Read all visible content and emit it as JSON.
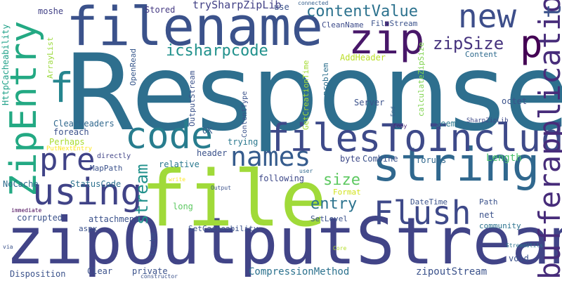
{
  "word_cloud": {
    "words": [
      {
        "text": "Response",
        "color": "#2e6f8e"
      },
      {
        "text": "zipOutputStream",
        "color": "#414487"
      },
      {
        "text": "file",
        "color": "#a0da39"
      },
      {
        "text": "filename",
        "color": "#3b528b"
      },
      {
        "text": "string",
        "color": "#30688e"
      },
      {
        "text": "filesToInclude",
        "color": "#3e4a89"
      },
      {
        "text": "ZipEntry",
        "color": "#23a983"
      },
      {
        "text": "using",
        "color": "#404387"
      },
      {
        "text": "code",
        "color": "#287d8e"
      },
      {
        "text": "new",
        "color": "#3d4e8a"
      },
      {
        "text": "zip",
        "color": "#481769"
      },
      {
        "text": "p",
        "color": "#440154"
      },
      {
        "text": "f",
        "color": "#25858e"
      },
      {
        "text": "pre",
        "color": "#404387"
      },
      {
        "text": "names",
        "color": "#365c8d"
      },
      {
        "text": "Flush",
        "color": "#3e4989"
      },
      {
        "text": "bufferapplication",
        "color": "#472c7a"
      },
      {
        "text": "contentValue",
        "color": "#2c728e"
      },
      {
        "text": "icsharpcode",
        "color": "#21918c"
      },
      {
        "text": "zipSize",
        "color": "#46337e"
      },
      {
        "text": "size",
        "color": "#5ec962"
      },
      {
        "text": "entry",
        "color": "#2c738e"
      },
      {
        "text": "stream",
        "color": "#21918c"
      },
      {
        "text": "tr",
        "color": "#3b528b"
      },
      {
        "text": "tryShar​pZipLib",
        "color": "#424186"
      },
      {
        "text": "moshe",
        "color": "#424186"
      },
      {
        "text": "Stored",
        "color": "#443983"
      },
      {
        "text": "use",
        "color": "#3b528b"
      },
      {
        "text": "connected",
        "color": "#355f8d"
      },
      {
        "text": "CleanName",
        "color": "#3e4c8a"
      },
      {
        "text": "FileStream",
        "color": "#3b528b"
      },
      {
        "text": "OpenRead",
        "color": "#38588c"
      },
      {
        "text": "Content",
        "color": "#2f6b8e"
      },
      {
        "text": "AddHeader",
        "color": "#bade28"
      },
      {
        "text": "ArrayList",
        "color": "#9bd93c"
      },
      {
        "text": "HttpCacheability",
        "color": "#1fa188"
      },
      {
        "text": "OutputStream",
        "color": "#3b528b"
      },
      {
        "text": "GetCreationTime",
        "color": "#a5db36"
      },
      {
        "text": "problem",
        "color": "#2d708e"
      },
      {
        "text": "calculateZipSize",
        "color": "#7fd34e"
      },
      {
        "text": "ClearHeaders",
        "color": "#31688e"
      },
      {
        "text": "foreach",
        "color": "#3b528b"
      },
      {
        "text": "Perhaps",
        "color": "#aadc32"
      },
      {
        "text": "PutNextEntry",
        "color": "#fde725"
      },
      {
        "text": "directly",
        "color": "#414487"
      },
      {
        "text": "MapPath",
        "color": "#3b528b"
      },
      {
        "text": "header",
        "color": "#3b528b"
      },
      {
        "text": "trying",
        "color": "#2a788e"
      },
      {
        "text": "OK",
        "color": "#355f8d"
      },
      {
        "text": "relative",
        "color": "#2a788e"
      },
      {
        "text": "ContentType",
        "color": "#3b528b"
      },
      {
        "text": "Server",
        "color": "#3b528b"
      },
      {
        "text": "seem",
        "color": "#2a788e"
      },
      {
        "text": "octet",
        "color": "#3b528b"
      },
      {
        "text": "End",
        "color": "#355f8d"
      },
      {
        "text": "Copy",
        "color": "#482173"
      },
      {
        "text": "SharpZipLib",
        "color": "#3e4a89"
      },
      {
        "text": "byte",
        "color": "#3e4a89"
      },
      {
        "text": "Combine",
        "color": "#3b528b"
      },
      {
        "text": "forums",
        "color": "#31688e"
      },
      {
        "text": "Length",
        "color": "#4ac16d"
      },
      {
        "text": "NoCache",
        "color": "#2f6c8e"
      },
      {
        "text": "StatusCode",
        "color": "#2d708e"
      },
      {
        "text": "write",
        "color": "#fde725"
      },
      {
        "text": "following",
        "color": "#3e4989"
      },
      {
        "text": "user",
        "color": "#31688e"
      },
      {
        "text": "Output",
        "color": "#3b528b"
      },
      {
        "text": "Format",
        "color": "#d2e21b"
      },
      {
        "text": "DateTime",
        "color": "#3b528b"
      },
      {
        "text": "Path",
        "color": "#3b528b"
      },
      {
        "text": "immediate",
        "color": "#440154"
      },
      {
        "text": "long",
        "color": "#5ec962"
      },
      {
        "text": "corrupted",
        "color": "#3b528b"
      },
      {
        "text": "attachment",
        "color": "#3b528b"
      },
      {
        "text": "SetCacheability",
        "color": "#3b528b"
      },
      {
        "text": "SetLevel",
        "color": "#3b528b"
      },
      {
        "text": "net",
        "color": "#3b528b"
      },
      {
        "text": "community",
        "color": "#2c728e"
      },
      {
        "text": "aspx",
        "color": "#3b528b"
      },
      {
        "text": "Cache",
        "color": "#3b528b"
      },
      {
        "text": "via",
        "color": "#3b528b"
      },
      {
        "text": "Core",
        "color": "#b5de2b"
      },
      {
        "text": "StreamUtils",
        "color": "#2c728e"
      },
      {
        "text": "void",
        "color": "#3b528b"
      },
      {
        "text": "Disposition",
        "color": "#3b528b"
      },
      {
        "text": "Clear",
        "color": "#3b528b"
      },
      {
        "text": "private",
        "color": "#3b528b"
      },
      {
        "text": "constructor",
        "color": "#3b528b"
      },
      {
        "text": "CompressionMethod",
        "color": "#2c728e"
      },
      {
        "text": "zipoutStream",
        "color": "#3b528b"
      }
    ]
  }
}
